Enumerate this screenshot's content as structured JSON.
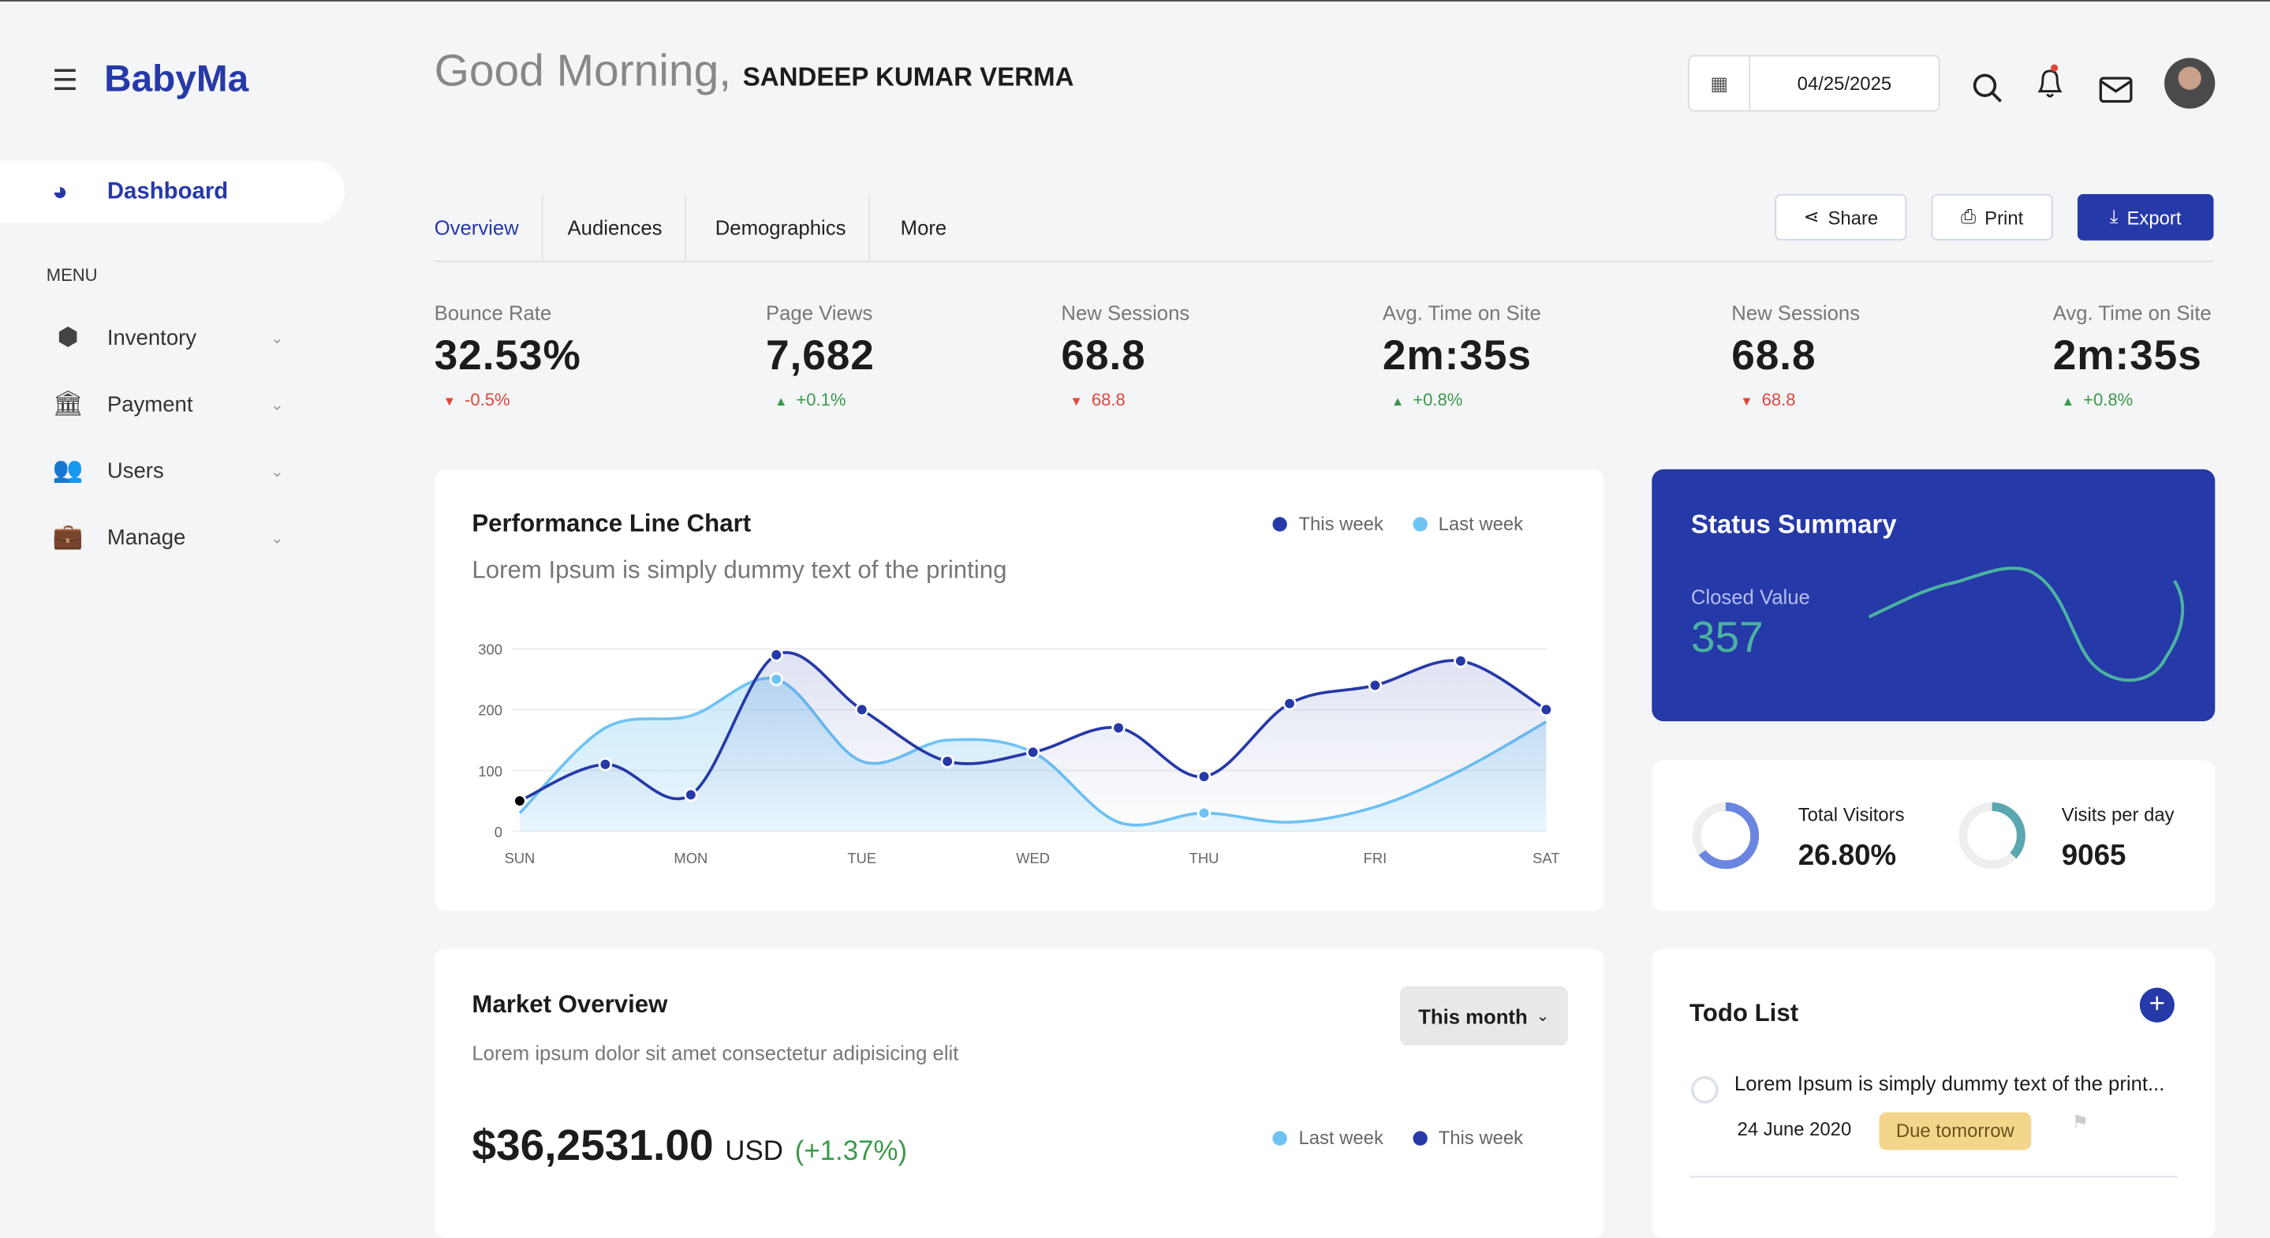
{
  "app": {
    "name": "BabyMa"
  },
  "header": {
    "greeting": "Good Morning,",
    "user": "SANDEEP KUMAR VERMA",
    "date": "04/25/2025"
  },
  "sidebar": {
    "active": "Dashboard",
    "section": "MENU",
    "items": [
      {
        "label": "Inventory",
        "icon": "box-icon"
      },
      {
        "label": "Payment",
        "icon": "bank-icon"
      },
      {
        "label": "Users",
        "icon": "users-icon"
      },
      {
        "label": "Manage",
        "icon": "briefcase-icon"
      }
    ]
  },
  "tabs": [
    {
      "label": "Overview",
      "active": true
    },
    {
      "label": "Audiences"
    },
    {
      "label": "Demographics"
    },
    {
      "label": "More"
    }
  ],
  "actions": {
    "share": "Share",
    "print": "Print",
    "export": "Export"
  },
  "stats": [
    {
      "label": "Bounce Rate",
      "value": "32.53%",
      "delta": "-0.5%",
      "dir": "down"
    },
    {
      "label": "Page Views",
      "value": "7,682",
      "delta": "+0.1%",
      "dir": "up"
    },
    {
      "label": "New Sessions",
      "value": "68.8",
      "delta": "68.8",
      "dir": "down"
    },
    {
      "label": "Avg. Time on Site",
      "value": "2m:35s",
      "delta": "+0.8%",
      "dir": "up"
    },
    {
      "label": "New Sessions",
      "value": "68.8",
      "delta": "68.8",
      "dir": "down"
    },
    {
      "label": "Avg. Time on Site",
      "value": "2m:35s",
      "delta": "+0.8%",
      "dir": "up"
    }
  ],
  "performance": {
    "title": "Performance Line Chart",
    "subtitle": "Lorem Ipsum is simply dummy text of the printing"
  },
  "chart_data": {
    "type": "area",
    "categories": [
      "SUN",
      "MON",
      "TUE",
      "WED",
      "THU",
      "FRI",
      "SAT"
    ],
    "x": [
      0,
      0.5,
      1,
      1.5,
      2,
      2.5,
      3,
      3.5,
      4,
      4.5,
      5,
      5.5,
      6
    ],
    "yticks": [
      0,
      100,
      200,
      300
    ],
    "ylim": [
      0,
      300
    ],
    "grid": true,
    "legend": "top-right",
    "series": [
      {
        "name": "This week",
        "color": "#2639a8",
        "values": [
          50,
          110,
          60,
          290,
          200,
          115,
          130,
          170,
          90,
          210,
          240,
          280,
          200
        ]
      },
      {
        "name": "Last week",
        "color": "#6ec3f4",
        "values": [
          30,
          170,
          190,
          250,
          115,
          150,
          130,
          15,
          30,
          15,
          40,
          100,
          180
        ]
      }
    ]
  },
  "status": {
    "title": "Status Summary",
    "label": "Closed Value",
    "value": "357"
  },
  "visitors": {
    "total_label": "Total Visitors",
    "total_value": "26.80%",
    "total_fraction": 0.65,
    "perday_label": "Visits per day",
    "perday_value": "9065",
    "perday_fraction": 0.37
  },
  "market": {
    "title": "Market Overview",
    "subtitle": "Lorem ipsum dolor sit amet consectetur adipisicing elit",
    "period": "This month",
    "amount": "$36,2531.00",
    "currency": "USD",
    "change": "(+1.37%)",
    "legend": [
      "Last week",
      "This week"
    ]
  },
  "todo": {
    "title": "Todo List",
    "items": [
      {
        "text": "Lorem Ipsum is simply dummy text of the print...",
        "date": "24 June 2020",
        "badge": "Due tomorrow"
      }
    ]
  },
  "colors": {
    "primary": "#2639a8",
    "accent": "#4bb3a0",
    "light": "#6ec3f4",
    "down": "#e0463a",
    "up": "#3a9a4a"
  }
}
